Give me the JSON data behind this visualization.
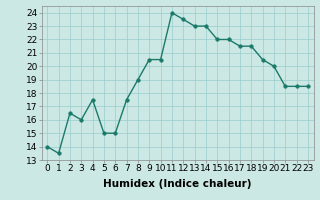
{
  "x": [
    0,
    1,
    2,
    3,
    4,
    5,
    6,
    7,
    8,
    9,
    10,
    11,
    12,
    13,
    14,
    15,
    16,
    17,
    18,
    19,
    20,
    21,
    22,
    23
  ],
  "y": [
    14,
    13.5,
    16.5,
    16,
    17.5,
    15,
    15,
    17.5,
    19,
    20.5,
    20.5,
    24,
    23.5,
    23,
    23,
    22,
    22,
    21.5,
    21.5,
    20.5,
    20,
    18.5,
    18.5,
    18.5
  ],
  "line_color": "#1a7a6a",
  "marker_color": "#1a7a6a",
  "bg_color": "#cce8e4",
  "grid_color": "#99cccc",
  "xlabel": "Humidex (Indice chaleur)",
  "ylim": [
    13,
    24.5
  ],
  "xlim": [
    -0.5,
    23.5
  ],
  "yticks": [
    13,
    14,
    15,
    16,
    17,
    18,
    19,
    20,
    21,
    22,
    23,
    24
  ],
  "xticks": [
    0,
    1,
    2,
    3,
    4,
    5,
    6,
    7,
    8,
    9,
    10,
    11,
    12,
    13,
    14,
    15,
    16,
    17,
    18,
    19,
    20,
    21,
    22,
    23
  ],
  "xlabel_fontsize": 7.5,
  "tick_fontsize": 6.5,
  "line_width": 1.0,
  "marker_size": 2.5
}
